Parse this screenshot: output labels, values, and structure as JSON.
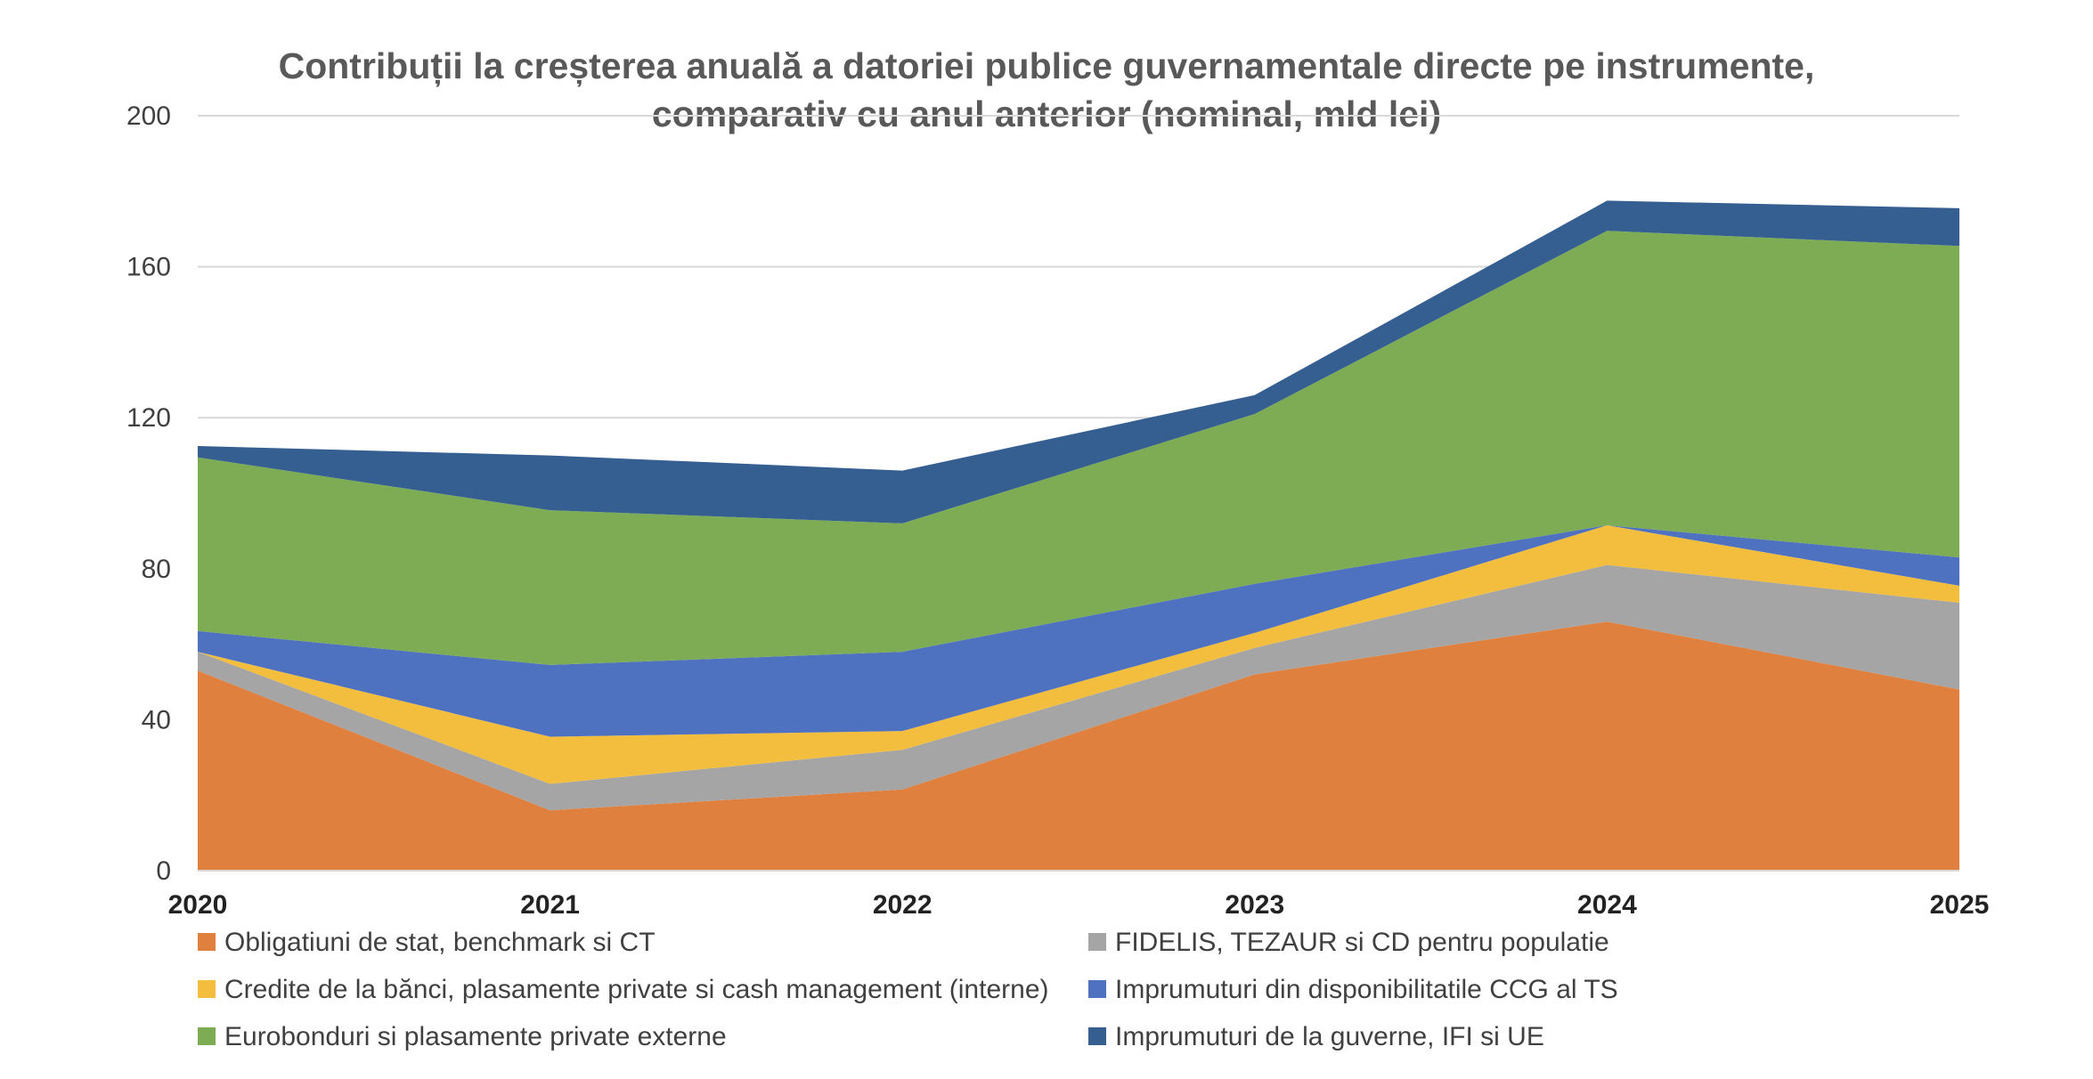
{
  "chart_data": {
    "type": "area",
    "stacked": true,
    "title": [
      "Contribuții la creșterea anuală a datoriei publice guvernamentale directe pe instrumente,",
      "comparativ cu anul anterior (nominal, mld lei)"
    ],
    "xlabel": "",
    "ylabel": "",
    "categories": [
      "2020",
      "2021",
      "2022",
      "2023",
      "2024",
      "2025"
    ],
    "ylim": [
      0,
      200
    ],
    "yticks": [
      "0",
      "40",
      "80",
      "120",
      "160",
      "200"
    ],
    "grid": true,
    "legend_position": "bottom",
    "series": [
      {
        "name": "Obligatiuni de stat, benchmark si CT",
        "color": "#E0803F",
        "values": [
          53,
          16,
          21.5,
          52,
          66,
          48
        ]
      },
      {
        "name": "FIDELIS, TEZAUR si CD pentru populatie",
        "color": "#A5A5A5",
        "values": [
          5,
          7,
          10.5,
          7,
          15,
          23
        ]
      },
      {
        "name": "Credite de la bănci, plasamente private si cash management (interne)",
        "color": "#F3BE3E",
        "values": [
          0,
          12.5,
          5,
          4,
          10.5,
          4.5
        ]
      },
      {
        "name": "Imprumuturi din disponibilitatile CCG al TS",
        "color": "#4E71C0",
        "values": [
          5.5,
          19,
          21,
          13,
          0,
          7.5
        ]
      },
      {
        "name": "Eurobonduri si plasamente private externe",
        "color": "#7DAC55",
        "values": [
          46,
          41,
          34,
          45,
          78,
          82.5
        ]
      },
      {
        "name": "Imprumuturi de la guverne, IFI si UE",
        "color": "#355E91",
        "values": [
          3,
          14.5,
          14,
          5,
          8,
          10
        ]
      }
    ]
  }
}
